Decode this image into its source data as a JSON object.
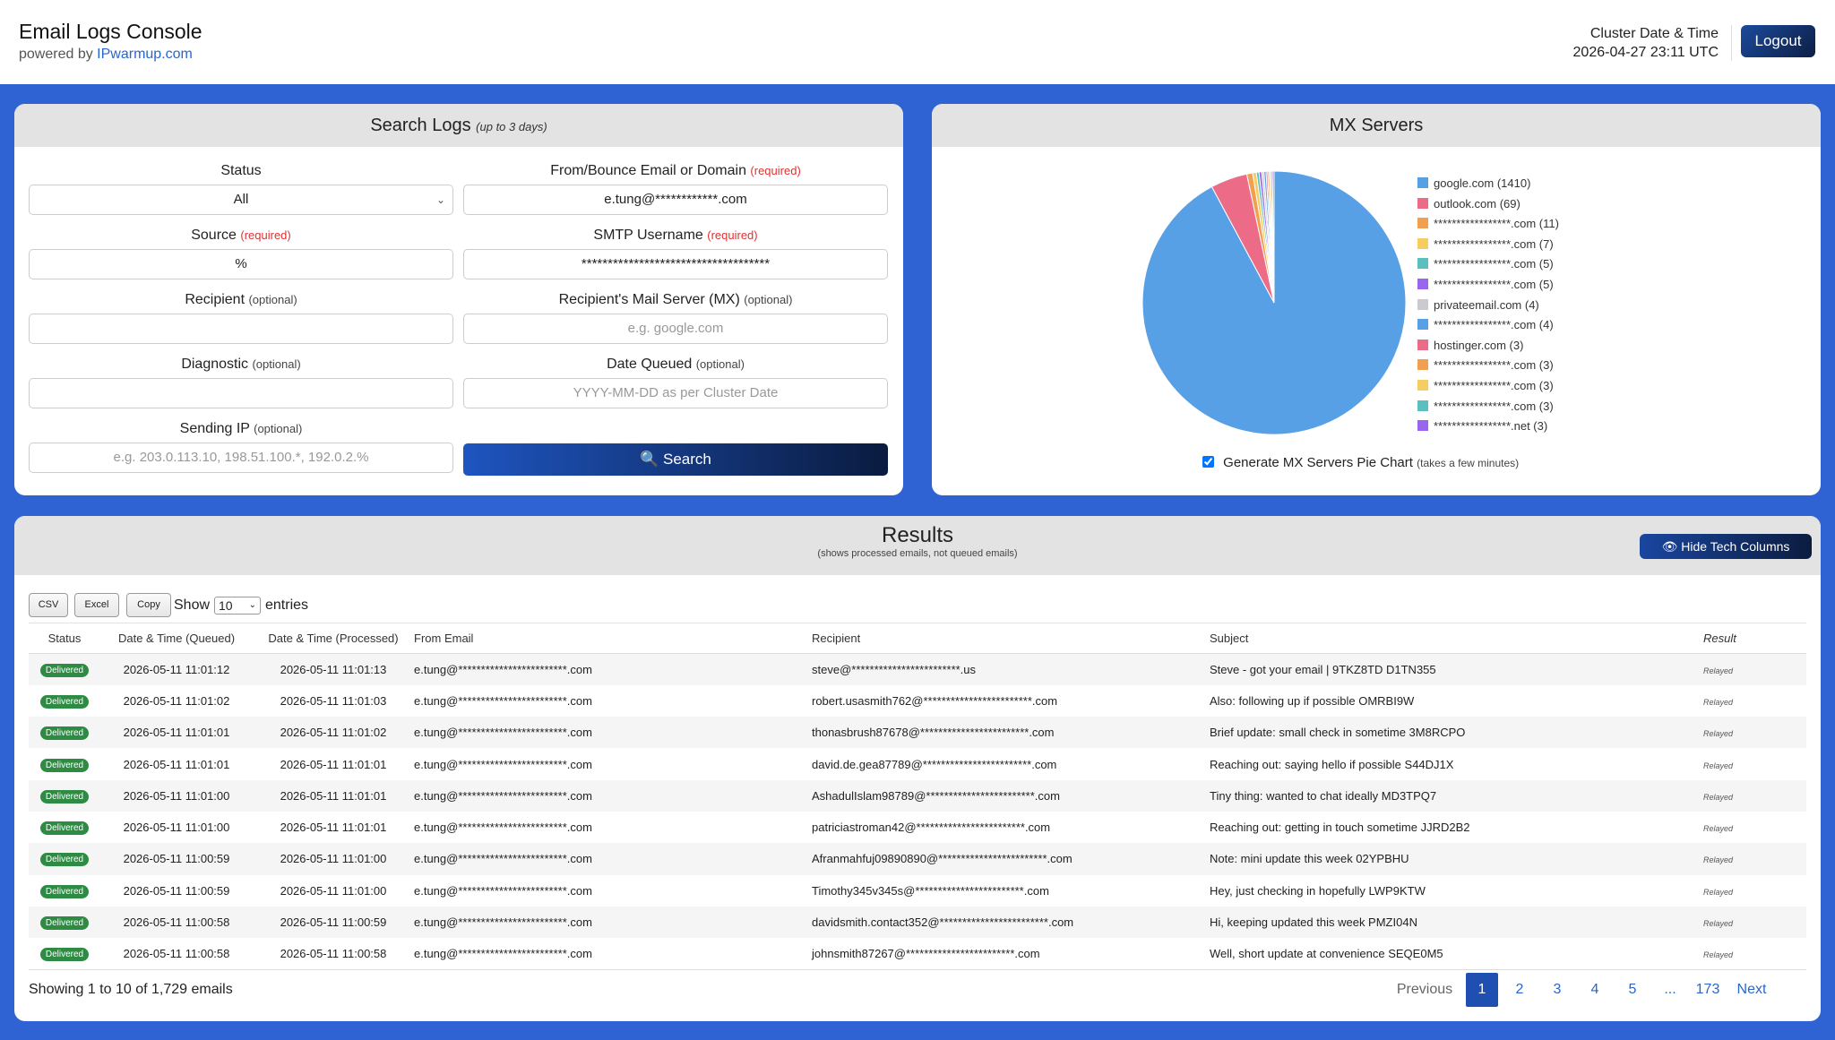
{
  "header": {
    "title": "Email Logs Console",
    "powered_prefix": "powered by",
    "powered_link": "IPwarmup.com",
    "cluster_label": "Cluster Date & Time",
    "cluster_value": "2026-04-27 23:11 UTC",
    "logout": "Logout"
  },
  "search": {
    "title": "Search Logs",
    "title_note": "(up to 3 days)",
    "status_label": "Status",
    "status_value": "All",
    "from_label": "From/Bounce Email or Domain",
    "from_note": "(required)",
    "from_value": "e.tung@************.com",
    "source_label": "Source",
    "source_note": "(required)",
    "source_value": "%",
    "smtp_label": "SMTP Username",
    "smtp_note": "(required)",
    "smtp_value": "************************************",
    "recipient_label": "Recipient",
    "recipient_note": "(optional)",
    "mx_label": "Recipient's Mail Server (MX)",
    "mx_note": "(optional)",
    "mx_placeholder": "e.g. google.com",
    "diag_label": "Diagnostic",
    "diag_note": "(optional)",
    "date_label": "Date Queued",
    "date_note": "(optional)",
    "date_placeholder": "YYYY-MM-DD as per Cluster Date",
    "ip_label": "Sending IP",
    "ip_note": "(optional)",
    "ip_placeholder": "e.g. 203.0.113.10, 198.51.100.*, 192.0.2.%",
    "search_button": "Search"
  },
  "mx": {
    "title": "MX Servers",
    "generate_label": "Generate MX Servers Pie Chart",
    "generate_note": "(takes a few minutes)",
    "generate_checked": true
  },
  "chart_data": {
    "type": "pie",
    "title": "MX Servers",
    "legend_position": "right",
    "slices": [
      {
        "label": "google.com (1410)",
        "value": 1410,
        "color": "#57a0e5"
      },
      {
        "label": "outlook.com (69)",
        "value": 69,
        "color": "#ec6b86"
      },
      {
        "label": "*****************.com (11)",
        "value": 11,
        "color": "#f0a050"
      },
      {
        "label": "*****************.com (7)",
        "value": 7,
        "color": "#f5cd60"
      },
      {
        "label": "*****************.com (5)",
        "value": 5,
        "color": "#5cbfbf"
      },
      {
        "label": "*****************.com (5)",
        "value": 5,
        "color": "#9a66f0"
      },
      {
        "label": "privateemail.com (4)",
        "value": 4,
        "color": "#c9cbcf"
      },
      {
        "label": "*****************.com (4)",
        "value": 4,
        "color": "#57a0e5"
      },
      {
        "label": "hostinger.com (3)",
        "value": 3,
        "color": "#ec6b86"
      },
      {
        "label": "*****************.com (3)",
        "value": 3,
        "color": "#f0a050"
      },
      {
        "label": "*****************.com (3)",
        "value": 3,
        "color": "#f5cd60"
      },
      {
        "label": "*****************.com (3)",
        "value": 3,
        "color": "#5cbfbf"
      },
      {
        "label": "*****************.net (3)",
        "value": 3,
        "color": "#9a66f0"
      }
    ]
  },
  "results": {
    "title": "Results",
    "subtitle": "(shows processed emails, not queued emails)",
    "hide_tech": "Hide Tech Columns",
    "csv": "CSV",
    "excel": "Excel",
    "copy": "Copy",
    "show_label": "Show",
    "show_value": "10",
    "entries_label": "entries",
    "columns": [
      "Status",
      "Date & Time (Queued)",
      "Date & Time (Processed)",
      "From Email",
      "Recipient",
      "Subject",
      "Result"
    ],
    "rows": [
      {
        "status": "Delivered",
        "queued": "2026-05-11 11:01:12",
        "processed": "2026-05-11 11:01:13",
        "from": "e.tung@************************.com",
        "recipient": "steve@************************.us",
        "subject": "Steve - got your email | 9TKZ8TD D1TN355",
        "result": "Relayed"
      },
      {
        "status": "Delivered",
        "queued": "2026-05-11 11:01:02",
        "processed": "2026-05-11 11:01:03",
        "from": "e.tung@************************.com",
        "recipient": "robert.usasmith762@************************.com",
        "subject": "Also: following up if possible OMRBI9W",
        "result": "Relayed"
      },
      {
        "status": "Delivered",
        "queued": "2026-05-11 11:01:01",
        "processed": "2026-05-11 11:01:02",
        "from": "e.tung@************************.com",
        "recipient": "thonasbrush87678@************************.com",
        "subject": "Brief update: small check in sometime 3M8RCPO",
        "result": "Relayed"
      },
      {
        "status": "Delivered",
        "queued": "2026-05-11 11:01:01",
        "processed": "2026-05-11 11:01:01",
        "from": "e.tung@************************.com",
        "recipient": "david.de.gea87789@************************.com",
        "subject": "Reaching out: saying hello if possible S44DJ1X",
        "result": "Relayed"
      },
      {
        "status": "Delivered",
        "queued": "2026-05-11 11:01:00",
        "processed": "2026-05-11 11:01:01",
        "from": "e.tung@************************.com",
        "recipient": "AshadulIslam98789@************************.com",
        "subject": "Tiny thing: wanted to chat ideally MD3TPQ7",
        "result": "Relayed"
      },
      {
        "status": "Delivered",
        "queued": "2026-05-11 11:01:00",
        "processed": "2026-05-11 11:01:01",
        "from": "e.tung@************************.com",
        "recipient": "patriciastroman42@************************.com",
        "subject": "Reaching out: getting in touch sometime JJRD2B2",
        "result": "Relayed"
      },
      {
        "status": "Delivered",
        "queued": "2026-05-11 11:00:59",
        "processed": "2026-05-11 11:01:00",
        "from": "e.tung@************************.com",
        "recipient": "Afranmahfuj09890890@************************.com",
        "subject": "Note: mini update this week 02YPBHU",
        "result": "Relayed"
      },
      {
        "status": "Delivered",
        "queued": "2026-05-11 11:00:59",
        "processed": "2026-05-11 11:01:00",
        "from": "e.tung@************************.com",
        "recipient": "Timothy345v345s@************************.com",
        "subject": "Hey, just checking in hopefully LWP9KTW",
        "result": "Relayed"
      },
      {
        "status": "Delivered",
        "queued": "2026-05-11 11:00:58",
        "processed": "2026-05-11 11:00:59",
        "from": "e.tung@************************.com",
        "recipient": "davidsmith.contact352@************************.com",
        "subject": "Hi, keeping updated this week PMZI04N",
        "result": "Relayed"
      },
      {
        "status": "Delivered",
        "queued": "2026-05-11 11:00:58",
        "processed": "2026-05-11 11:00:58",
        "from": "e.tung@************************.com",
        "recipient": "johnsmith87267@************************.com",
        "subject": "Well, short update at convenience SEQE0M5",
        "result": "Relayed"
      }
    ],
    "showing": "Showing 1 to 10 of 1,729 emails",
    "pagination": {
      "previous": "Previous",
      "pages": [
        "1",
        "2",
        "3",
        "4",
        "5",
        "...",
        "173"
      ],
      "active_page": "1",
      "next": "Next"
    }
  }
}
